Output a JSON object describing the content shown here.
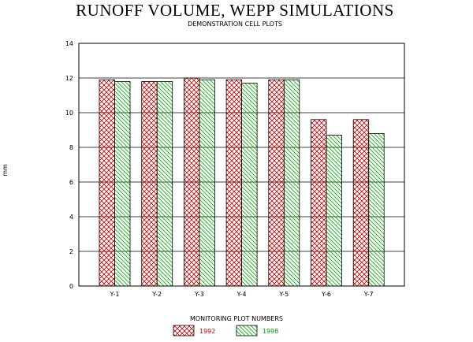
{
  "chart_data": {
    "type": "bar",
    "title": "RUNOFF VOLUME, WEPP SIMULATIONS",
    "subtitle": "DEMONSTRATION CELL PLOTS",
    "xlabel": "MONITORING PLOT NUMBERS",
    "ylabel": "mm",
    "categories": [
      "Y-1",
      "Y-2",
      "Y-3",
      "Y-4",
      "Y-5",
      "Y-6",
      "Y-7"
    ],
    "series": [
      {
        "name": "1992",
        "values": [
          11.9,
          11.8,
          12.0,
          11.9,
          11.9,
          9.6,
          9.6
        ],
        "color": "#cc0000",
        "pattern": "crosshatch"
      },
      {
        "name": "1998",
        "values": [
          11.8,
          11.8,
          11.9,
          11.7,
          11.9,
          8.7,
          8.8
        ],
        "color": "#00aa00",
        "pattern": "diagonal"
      }
    ],
    "ylim": [
      0,
      14
    ],
    "yticks": [
      "0",
      "2",
      "4",
      "6",
      "8",
      "10",
      "12",
      "14"
    ],
    "grid": true,
    "legend_position": "bottom-center"
  }
}
